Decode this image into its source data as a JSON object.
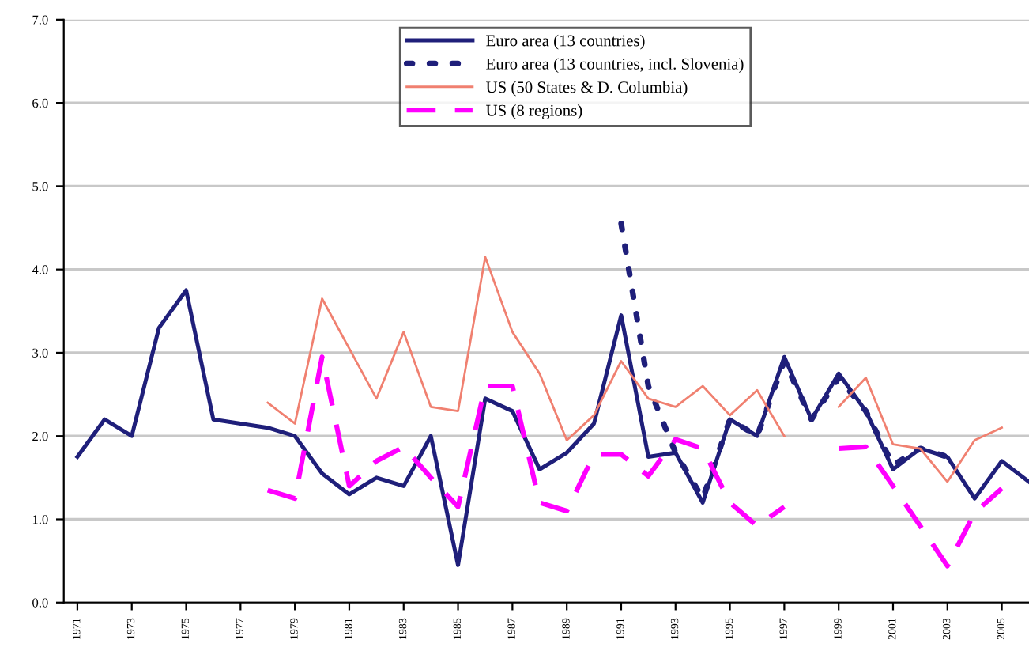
{
  "chart_data": {
    "type": "line",
    "x": [
      1971,
      1972,
      1973,
      1974,
      1975,
      1976,
      1977,
      1978,
      1979,
      1980,
      1981,
      1982,
      1983,
      1984,
      1985,
      1986,
      1987,
      1988,
      1989,
      1990,
      1991,
      1992,
      1993,
      1994,
      1995,
      1996,
      1997,
      1998,
      1999,
      2000,
      2001,
      2002,
      2003,
      2004,
      2005,
      2006
    ],
    "series": [
      {
        "name": "Euro area (13 countries)",
        "color": "#1f1f7a",
        "line_style": "solid",
        "values": [
          1.75,
          2.2,
          2.0,
          3.3,
          3.75,
          2.2,
          2.15,
          2.1,
          2.0,
          1.55,
          1.3,
          1.5,
          1.4,
          2.0,
          0.45,
          2.45,
          2.3,
          1.6,
          1.8,
          2.15,
          3.45,
          1.75,
          1.8,
          1.2,
          2.2,
          2.0,
          2.95,
          2.2,
          2.75,
          2.3,
          1.6,
          1.85,
          1.75,
          1.25,
          1.7,
          1.45
        ]
      },
      {
        "name": "Euro area (13 countries, incl. Slovenia)",
        "color": "#1f1f7a",
        "line_style": "dotted",
        "values": [
          null,
          null,
          null,
          null,
          null,
          null,
          null,
          null,
          null,
          null,
          null,
          null,
          null,
          null,
          null,
          null,
          null,
          null,
          null,
          null,
          4.55,
          2.6,
          1.8,
          1.25,
          2.2,
          2.0,
          2.9,
          2.2,
          2.7,
          2.3,
          1.65,
          1.85,
          1.75,
          null,
          null,
          null
        ]
      },
      {
        "name": "US (50 States & D. Columbia)",
        "color": "#f08070",
        "line_style": "solid",
        "values": [
          null,
          null,
          null,
          null,
          null,
          null,
          null,
          2.4,
          2.15,
          3.65,
          3.05,
          2.45,
          3.25,
          2.35,
          2.3,
          4.15,
          3.25,
          2.75,
          1.95,
          2.25,
          2.9,
          2.45,
          2.35,
          2.6,
          2.25,
          2.55,
          2.0,
          null,
          2.35,
          2.7,
          1.9,
          1.85,
          1.45,
          1.95,
          2.1,
          null
        ]
      },
      {
        "name": "US (8 regions)",
        "color": "#ff00ff",
        "line_style": "dashed",
        "values": [
          null,
          null,
          null,
          null,
          null,
          null,
          null,
          1.35,
          1.25,
          2.95,
          1.4,
          1.7,
          1.87,
          1.5,
          1.15,
          2.6,
          2.6,
          1.2,
          1.1,
          1.78,
          1.78,
          1.52,
          1.96,
          1.85,
          1.2,
          0.92,
          1.15,
          null,
          1.85,
          1.87,
          1.4,
          0.92,
          0.44,
          1.08,
          1.37,
          null
        ]
      }
    ],
    "xlim": [
      1970.5,
      2006
    ],
    "xticks": [
      1971,
      1973,
      1975,
      1977,
      1979,
      1981,
      1983,
      1985,
      1987,
      1989,
      1991,
      1993,
      1995,
      1997,
      1999,
      2001,
      2003,
      2005
    ],
    "ylim": [
      0,
      7
    ],
    "yticks": [
      {
        "value": 0,
        "label": "0.0"
      },
      {
        "value": 1,
        "label": "1.0"
      },
      {
        "value": 2,
        "label": "2.0"
      },
      {
        "value": 3,
        "label": "3.0"
      },
      {
        "value": 4,
        "label": "4.0"
      },
      {
        "value": 5,
        "label": "5.0"
      },
      {
        "value": 6,
        "label": "6.0"
      },
      {
        "value": 7,
        "label": "7.0"
      }
    ],
    "grid": "y",
    "legend": "top"
  }
}
